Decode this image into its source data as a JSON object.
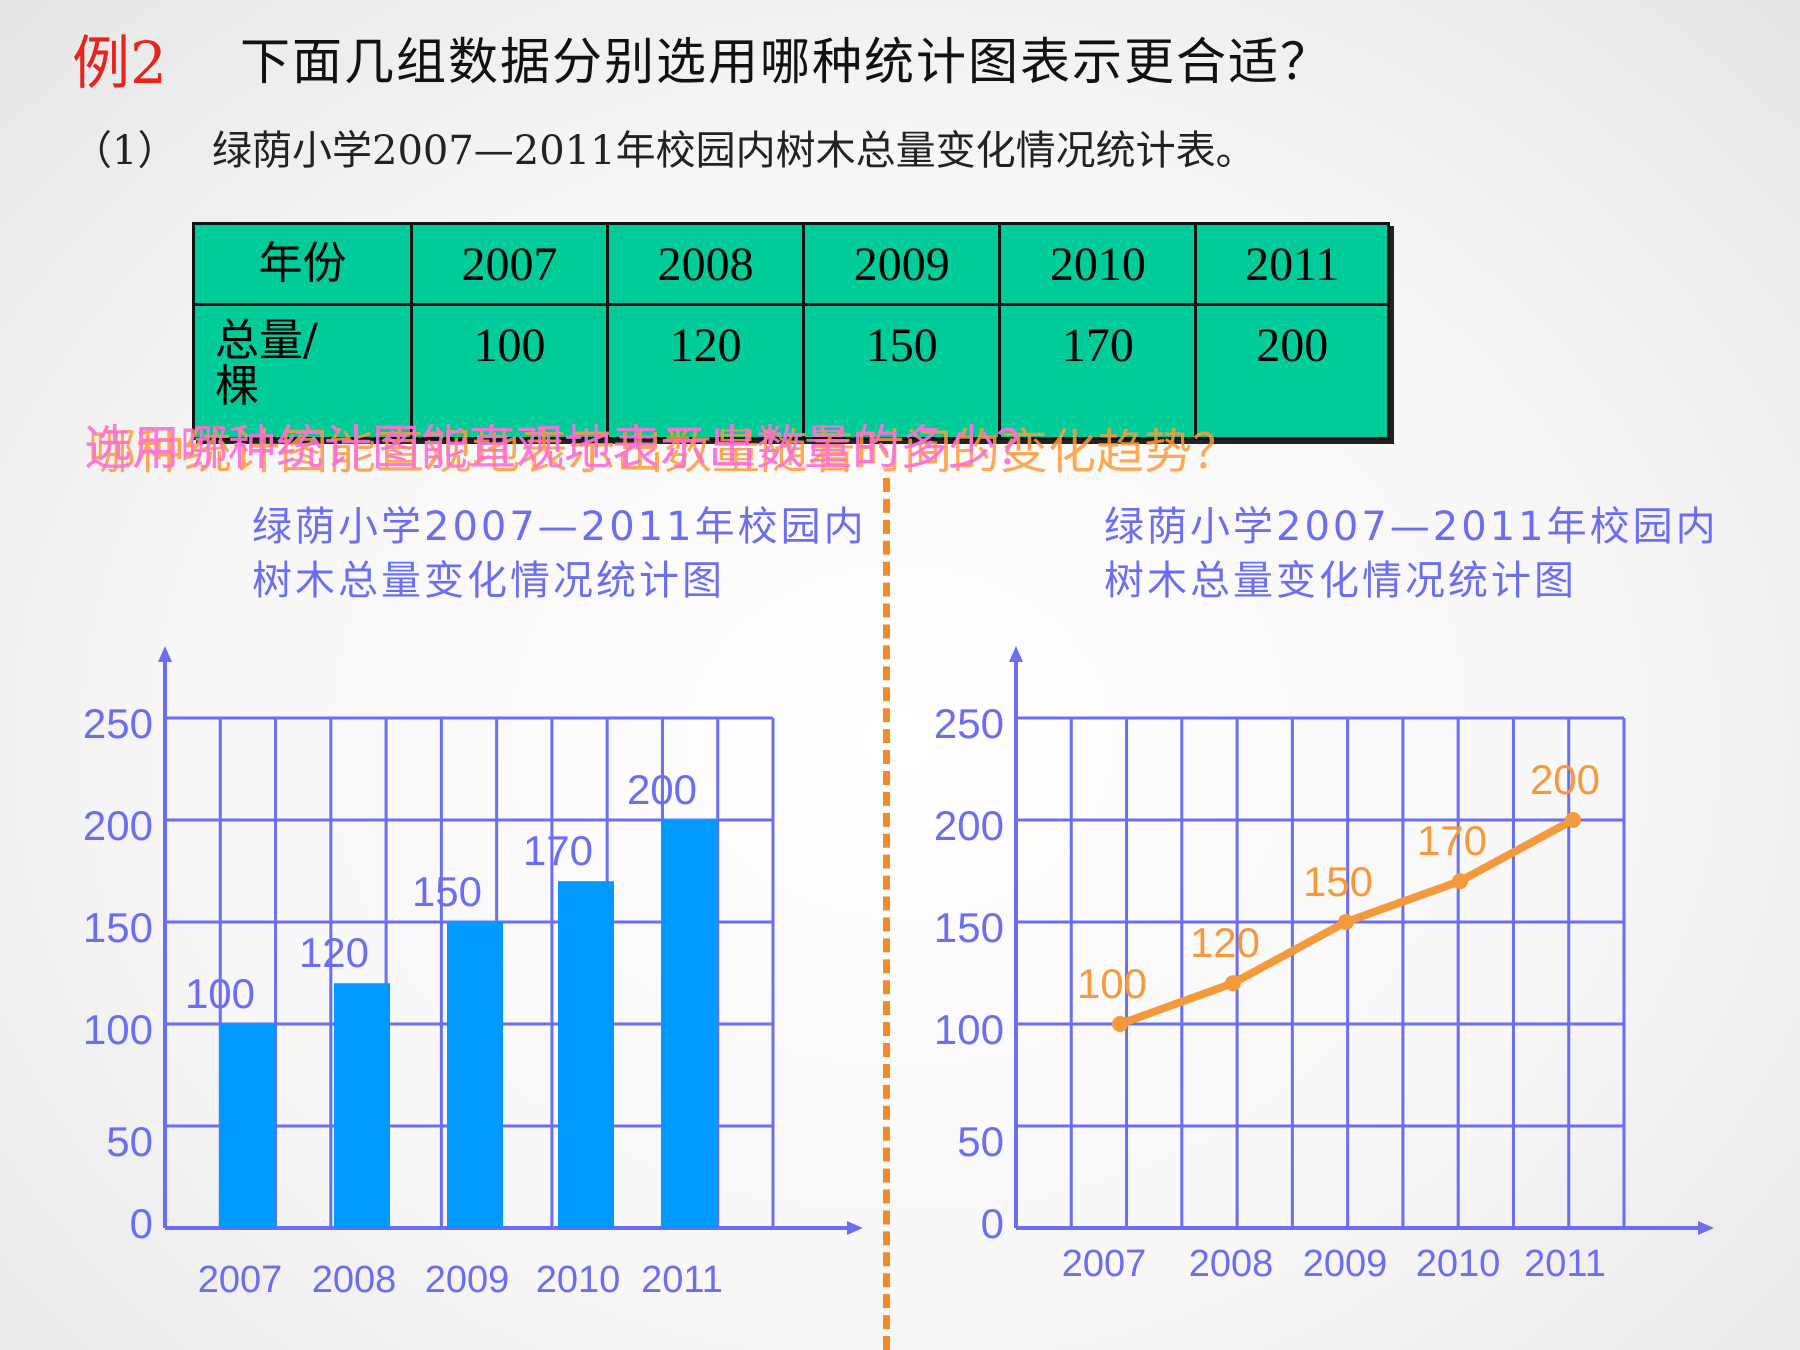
{
  "header": {
    "example_label": "例2",
    "question": "下面几组数据分别选用哪种统计图表示更合适？",
    "sub_number": "（1）",
    "sub_text": "绿荫小学2007—2011年校园内树木总量变化情况统计表。"
  },
  "table": {
    "header_row_label": "年份",
    "data_row_label_line1": "总量/",
    "data_row_label_line2": "棵",
    "years": [
      "2007",
      "2008",
      "2009",
      "2010",
      "2011"
    ],
    "values": [
      "100",
      "120",
      "150",
      "170",
      "200"
    ]
  },
  "overlay": {
    "question_pink": "选用哪种统计图能直观地表示出数量的多少？",
    "question_orange": "哪种统计图能直观地表示出数量随着时间的变化趋势？"
  },
  "colors": {
    "accent_red": "#e8231f",
    "table_fill": "#00cc99",
    "grid_blue": "#6b6ef0",
    "bar_blue": "#0099ff",
    "line_orange": "#f59a3c",
    "divider_orange": "#f28a28"
  },
  "chart_data": [
    {
      "type": "bar",
      "title_line1": "绿荫小学2007—2011年校园内",
      "title_line2": "树木总量变化情况统计图",
      "categories": [
        "2007",
        "2008",
        "2009",
        "2010",
        "2011"
      ],
      "values": [
        100,
        120,
        150,
        170,
        200
      ],
      "data_labels": [
        "100",
        "120",
        "150",
        "170",
        "200"
      ],
      "y_ticks": [
        0,
        50,
        100,
        150,
        200,
        250
      ],
      "ylim": [
        0,
        250
      ],
      "grid": true
    },
    {
      "type": "line",
      "title_line1": "绿荫小学2007—2011年校园内",
      "title_line2": "树木总量变化情况统计图",
      "categories": [
        "2007",
        "2008",
        "2009",
        "2010",
        "2011"
      ],
      "values": [
        100,
        120,
        150,
        170,
        200
      ],
      "data_labels": [
        "100",
        "120",
        "150",
        "170",
        "200"
      ],
      "y_ticks": [
        0,
        50,
        100,
        150,
        200,
        250
      ],
      "ylim": [
        0,
        250
      ],
      "grid": true
    }
  ]
}
